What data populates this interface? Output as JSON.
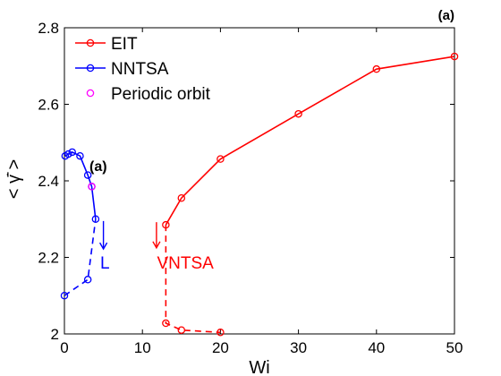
{
  "chart_data": {
    "type": "line",
    "panel_label": "(a)",
    "inner_label": "(a)",
    "xlabel": "Wi",
    "ylabel": "< γ̄̇ >",
    "xlim": [
      0,
      50
    ],
    "ylim": [
      2,
      2.8
    ],
    "x_ticks": [
      0,
      10,
      20,
      30,
      40,
      50
    ],
    "y_ticks": [
      2,
      2.2,
      2.4,
      2.6,
      2.8
    ],
    "x_tick_labels": [
      "0",
      "10",
      "20",
      "30",
      "40",
      "50"
    ],
    "y_tick_labels": [
      "2",
      "2.2",
      "2.4",
      "2.6",
      "2.8"
    ],
    "grid": false,
    "legend_position": "top-left",
    "colors": {
      "eit": "#ff0000",
      "nntsa": "#0000ff",
      "periodic": "#ff00ff",
      "axis": "#000000"
    },
    "series": [
      {
        "name": "EIT",
        "color": "#ff0000",
        "solid_x": [
          13,
          15,
          20,
          30,
          40,
          50
        ],
        "solid_y": [
          2.285,
          2.355,
          2.457,
          2.575,
          2.692,
          2.725
        ],
        "dashed_x": [
          13,
          13,
          15,
          20
        ],
        "dashed_y": [
          2.285,
          2.028,
          2.01,
          2.004
        ]
      },
      {
        "name": "NNTSA",
        "color": "#0000ff",
        "solid_x": [
          0.1,
          0.5,
          1.0,
          2.0,
          3.0,
          3.5,
          4.0
        ],
        "solid_y": [
          2.465,
          2.47,
          2.475,
          2.465,
          2.415,
          2.385,
          2.3
        ],
        "dashed_x": [
          0,
          3,
          4
        ],
        "dashed_y": [
          2.1,
          2.142,
          2.3
        ]
      },
      {
        "name": "Periodic orbit",
        "color": "#ff00ff",
        "x": [
          3.5
        ],
        "y": [
          2.385
        ]
      }
    ],
    "annotations": [
      {
        "text": "L",
        "color": "#0000ff",
        "arrow_x": 5.0,
        "arrow_y_from": 2.295,
        "arrow_y_to": 2.222,
        "text_x": 5.2,
        "text_y": 2.19
      },
      {
        "text": "VNTSA",
        "color": "#ff0000",
        "arrow_x": 11.8,
        "arrow_y_from": 2.292,
        "arrow_y_to": 2.225,
        "text_x": 15.5,
        "text_y": 2.19
      }
    ]
  }
}
